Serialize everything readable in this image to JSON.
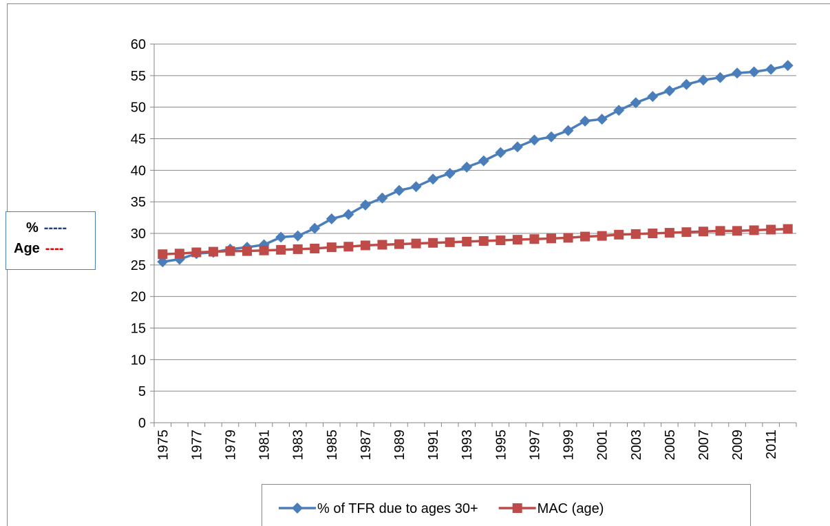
{
  "chart_data": {
    "type": "line",
    "categories": [
      "1975",
      null,
      "1977",
      null,
      "1979",
      null,
      "1981",
      null,
      "1983",
      null,
      "1985",
      null,
      "1987",
      null,
      "1989",
      null,
      "1991",
      null,
      "1993",
      null,
      "1995",
      null,
      "1997",
      null,
      "1999",
      null,
      "2001",
      null,
      "2003",
      null,
      "2005",
      null,
      "2007",
      null,
      "2009",
      null,
      "2011",
      null
    ],
    "series": [
      {
        "name": "% of TFR due to ages 30+",
        "color": "#4a7ebb",
        "marker": "diamond",
        "values": [
          25.5,
          25.9,
          26.8,
          27.0,
          27.5,
          27.8,
          28.2,
          29.4,
          29.6,
          30.8,
          32.3,
          33.0,
          34.5,
          35.6,
          36.8,
          37.4,
          38.6,
          39.5,
          40.5,
          41.5,
          42.8,
          43.7,
          44.8,
          45.3,
          46.3,
          47.8,
          48.1,
          49.5,
          50.7,
          51.7,
          52.6,
          53.6,
          54.3,
          54.7,
          55.4,
          55.6,
          56.0,
          56.6
        ]
      },
      {
        "name": "MAC (age)",
        "color": "#be4b48",
        "marker": "square",
        "values": [
          26.7,
          26.8,
          27.0,
          27.1,
          27.2,
          27.2,
          27.3,
          27.4,
          27.5,
          27.6,
          27.8,
          27.9,
          28.1,
          28.2,
          28.3,
          28.4,
          28.5,
          28.6,
          28.7,
          28.8,
          28.9,
          29.0,
          29.1,
          29.2,
          29.3,
          29.5,
          29.6,
          29.8,
          29.9,
          30.0,
          30.1,
          30.2,
          30.3,
          30.4,
          30.4,
          30.5,
          30.6,
          30.7
        ]
      }
    ],
    "ylim": [
      0,
      60
    ],
    "yticks": [
      0,
      5,
      10,
      15,
      20,
      25,
      30,
      35,
      40,
      45,
      50,
      55,
      60
    ],
    "grid": true,
    "legend": "bottom",
    "annotations": [
      {
        "text": "%",
        "key": "-----",
        "color": "#1f3d7a"
      },
      {
        "text": "Age",
        "key": "----",
        "color": "#e00000"
      }
    ]
  }
}
